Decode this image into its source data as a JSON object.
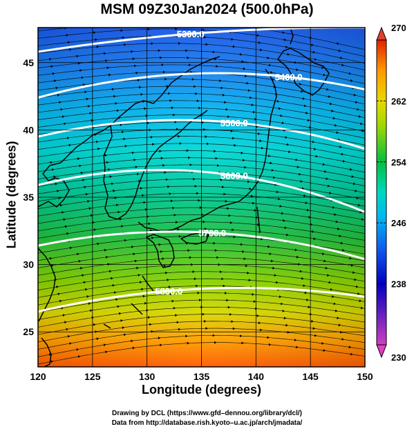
{
  "title": "MSM 09Z30Jan2024 (500.0hPa)",
  "xlabel": "Longitude (degrees)",
  "ylabel": "Latitude  (degrees)",
  "credits": [
    "Drawing by DCL (https://www.gfd–dennou.org/library/dcl/)",
    "Data from http://database.rish.kyoto–u.ac.jp/arch/jmadata/"
  ],
  "chart_data": {
    "type": "map",
    "xlim": [
      120,
      150
    ],
    "ylim": [
      22.4,
      47.6
    ],
    "x_ticks": [
      120,
      125,
      130,
      135,
      140,
      145,
      150
    ],
    "y_ticks": [
      25,
      30,
      35,
      40,
      45
    ],
    "grid": true,
    "colorbar": {
      "position": "right",
      "min": 230,
      "max": 270,
      "tick_labels": [
        230,
        238,
        246,
        254,
        262,
        270
      ],
      "colors": [
        "#d040c0",
        "#0000c0",
        "#1a6cf0",
        "#00d8e8",
        "#00c040",
        "#c8e000",
        "#ff9a00",
        "#e02000"
      ]
    },
    "contours": [
      {
        "label": "5300.0",
        "lat_at_120": 45.8,
        "lat_at_135": 47.2,
        "lat_at_150": 47.6,
        "label_lon": 134
      },
      {
        "label": "5400.0",
        "lat_at_120": 42.4,
        "lat_at_135": 44.2,
        "lat_at_150": 43.0,
        "label_lon": 143
      },
      {
        "label": "5500.0",
        "lat_at_120": 39.5,
        "lat_at_135": 40.7,
        "lat_at_150": 38.6,
        "label_lon": 138
      },
      {
        "label": "5600.0",
        "lat_at_120": 35.9,
        "lat_at_135": 36.9,
        "lat_at_150": 33.9,
        "label_lon": 138
      },
      {
        "label": "5700.0",
        "lat_at_120": 31.4,
        "lat_at_135": 32.4,
        "lat_at_150": 30.4,
        "label_lon": 136
      },
      {
        "label": "5800.0",
        "lat_at_120": 26.5,
        "lat_at_135": 28.2,
        "lat_at_150": 27.6,
        "label_lon": 132
      }
    ]
  }
}
